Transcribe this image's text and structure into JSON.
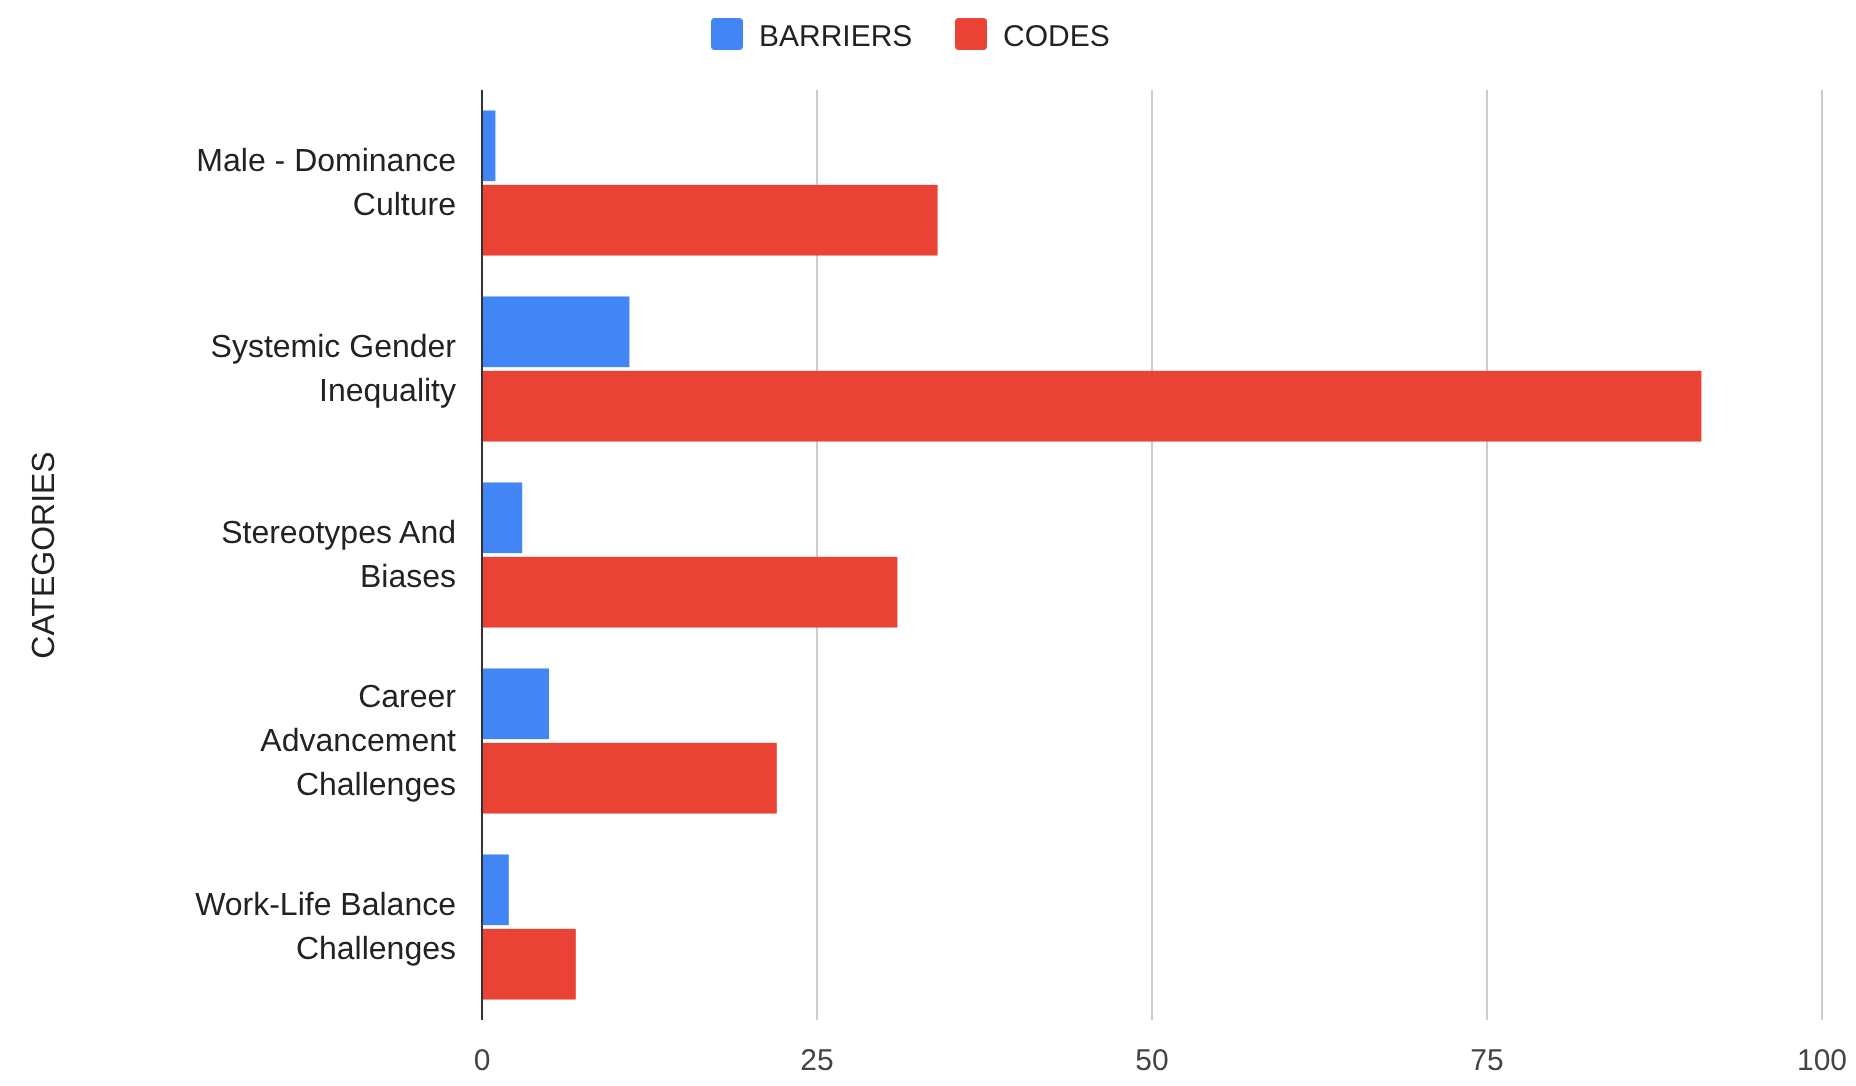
{
  "chart_data": {
    "type": "bar",
    "orientation": "horizontal",
    "ylabel": "CATEGORIES",
    "categories": [
      "Male - Dominance Culture",
      "Systemic Gender Inequality",
      "Stereotypes And Biases",
      "Career Advancement Challenges",
      "Work-Life Balance Challenges"
    ],
    "series": [
      {
        "name": "BARRIERS",
        "color": "#4285f4",
        "values": [
          1,
          11,
          3,
          5,
          2
        ]
      },
      {
        "name": "CODES",
        "color": "#ea4335",
        "values": [
          34,
          91,
          31,
          22,
          7
        ]
      }
    ],
    "xlim": [
      0,
      100
    ],
    "xticks": [
      0,
      25,
      50,
      75,
      100
    ],
    "grid": "x",
    "legend": "top"
  }
}
